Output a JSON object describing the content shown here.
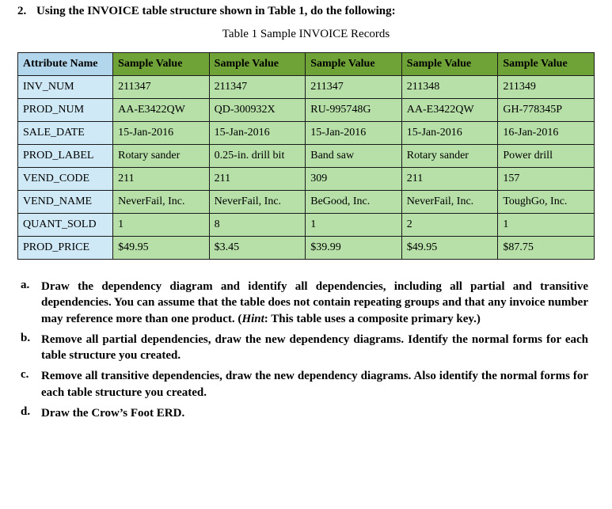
{
  "question": {
    "number": "2.",
    "prompt": "Using the INVOICE table structure shown in Table 1, do the following:"
  },
  "caption": "Table 1 Sample INVOICE Records",
  "table": {
    "header_attr_bg": "#b2d6ec",
    "header_sv_bg": "#6fa337",
    "cell_attr_bg": "#cfeaf6",
    "cell_sv_bg": "#b6e0a8",
    "border_color": "#1a1a1a",
    "font_size": 14,
    "headers": [
      "Attribute Name",
      "Sample Value",
      "Sample Value",
      "Sample Value",
      "Sample Value",
      "Sample Value"
    ],
    "rows": [
      [
        "INV_NUM",
        "211347",
        "211347",
        "211347",
        "211348",
        "211349"
      ],
      [
        "PROD_NUM",
        "AA-E3422QW",
        "QD-300932X",
        "RU-995748G",
        "AA-E3422QW",
        "GH-778345P"
      ],
      [
        "SALE_DATE",
        "15-Jan-2016",
        "15-Jan-2016",
        "15-Jan-2016",
        "15-Jan-2016",
        "16-Jan-2016"
      ],
      [
        "PROD_LABEL",
        "Rotary sander",
        "0.25-in. drill bit",
        "Band saw",
        "Rotary sander",
        "Power drill"
      ],
      [
        "VEND_CODE",
        "211",
        "211",
        "309",
        "211",
        "157"
      ],
      [
        "VEND_NAME",
        "NeverFail, Inc.",
        "NeverFail, Inc.",
        "BeGood, Inc.",
        "NeverFail, Inc.",
        "ToughGo, Inc."
      ],
      [
        "QUANT_SOLD",
        "1",
        "8",
        "1",
        "2",
        "1"
      ],
      [
        "PROD_PRICE",
        "$49.95",
        "$3.45",
        "$39.99",
        "$49.95",
        "$87.75"
      ]
    ]
  },
  "subparts": [
    {
      "letter": "a.",
      "text_before_hint": "Draw the dependency diagram and identify all dependencies, including all partial and transitive dependencies. You can assume that the table does not contain repeating groups and that any invoice number may reference more than one product. (",
      "hint_label": "Hint",
      "text_after_hint": ": This table uses a composite primary key.)"
    },
    {
      "letter": "b.",
      "text_before_hint": "Remove all partial dependencies, draw the new dependency diagrams. Identify the normal forms for each table structure you created.",
      "hint_label": "",
      "text_after_hint": ""
    },
    {
      "letter": "c.",
      "text_before_hint": "Remove all transitive dependencies, draw the new dependency diagrams. Also identify the normal forms for each table structure you created.",
      "hint_label": "",
      "text_after_hint": ""
    },
    {
      "letter": "d.",
      "text_before_hint": "Draw the Crow’s Foot ERD.",
      "hint_label": "",
      "text_after_hint": ""
    }
  ]
}
